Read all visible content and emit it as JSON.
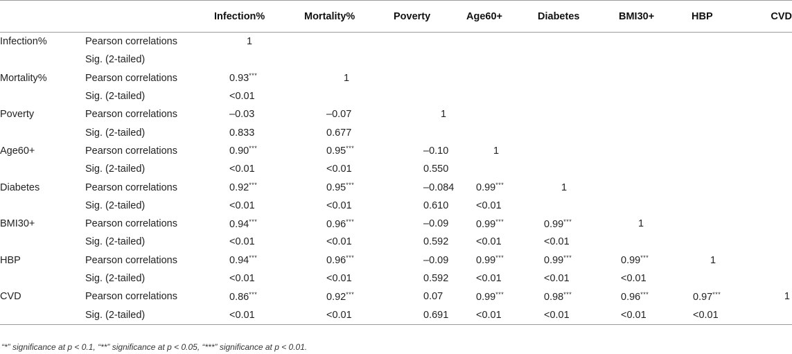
{
  "table": {
    "columns": [
      "",
      "",
      "Infection%",
      "Mortality%",
      "Poverty",
      "Age60+",
      "Diabetes",
      "BMI30+",
      "HBP",
      "CVD"
    ],
    "rows": [
      {
        "variable": "Infection%",
        "stat": "Pearson correlations",
        "cells": [
          {
            "v": "1",
            "s": ""
          },
          {
            "v": "",
            "s": ""
          },
          {
            "v": "",
            "s": ""
          },
          {
            "v": "",
            "s": ""
          },
          {
            "v": "",
            "s": ""
          },
          {
            "v": "",
            "s": ""
          },
          {
            "v": "",
            "s": ""
          },
          {
            "v": "",
            "s": ""
          }
        ]
      },
      {
        "variable": "",
        "stat": "Sig. (2-tailed)",
        "cells": [
          {
            "v": "",
            "s": ""
          },
          {
            "v": "",
            "s": ""
          },
          {
            "v": "",
            "s": ""
          },
          {
            "v": "",
            "s": ""
          },
          {
            "v": "",
            "s": ""
          },
          {
            "v": "",
            "s": ""
          },
          {
            "v": "",
            "s": ""
          },
          {
            "v": "",
            "s": ""
          }
        ]
      },
      {
        "variable": "Mortality%",
        "stat": "Pearson correlations",
        "cells": [
          {
            "v": "0.93",
            "s": "***"
          },
          {
            "v": "1",
            "s": ""
          },
          {
            "v": "",
            "s": ""
          },
          {
            "v": "",
            "s": ""
          },
          {
            "v": "",
            "s": ""
          },
          {
            "v": "",
            "s": ""
          },
          {
            "v": "",
            "s": ""
          },
          {
            "v": "",
            "s": ""
          }
        ]
      },
      {
        "variable": "",
        "stat": "Sig. (2-tailed)",
        "cells": [
          {
            "v": "<0.01",
            "s": ""
          },
          {
            "v": "",
            "s": ""
          },
          {
            "v": "",
            "s": ""
          },
          {
            "v": "",
            "s": ""
          },
          {
            "v": "",
            "s": ""
          },
          {
            "v": "",
            "s": ""
          },
          {
            "v": "",
            "s": ""
          },
          {
            "v": "",
            "s": ""
          }
        ]
      },
      {
        "variable": "Poverty",
        "stat": "Pearson correlations",
        "cells": [
          {
            "v": "–0.03",
            "s": ""
          },
          {
            "v": "–0.07",
            "s": ""
          },
          {
            "v": "1",
            "s": ""
          },
          {
            "v": "",
            "s": ""
          },
          {
            "v": "",
            "s": ""
          },
          {
            "v": "",
            "s": ""
          },
          {
            "v": "",
            "s": ""
          },
          {
            "v": "",
            "s": ""
          }
        ]
      },
      {
        "variable": "",
        "stat": "Sig. (2-tailed)",
        "cells": [
          {
            "v": "0.833",
            "s": ""
          },
          {
            "v": "0.677",
            "s": ""
          },
          {
            "v": "",
            "s": ""
          },
          {
            "v": "",
            "s": ""
          },
          {
            "v": "",
            "s": ""
          },
          {
            "v": "",
            "s": ""
          },
          {
            "v": "",
            "s": ""
          },
          {
            "v": "",
            "s": ""
          }
        ]
      },
      {
        "variable": "Age60+",
        "stat": "Pearson correlations",
        "cells": [
          {
            "v": "0.90",
            "s": "***"
          },
          {
            "v": "0.95",
            "s": "***"
          },
          {
            "v": "–0.10",
            "s": ""
          },
          {
            "v": "1",
            "s": ""
          },
          {
            "v": "",
            "s": ""
          },
          {
            "v": "",
            "s": ""
          },
          {
            "v": "",
            "s": ""
          },
          {
            "v": "",
            "s": ""
          }
        ]
      },
      {
        "variable": "",
        "stat": "Sig. (2-tailed)",
        "cells": [
          {
            "v": "<0.01",
            "s": ""
          },
          {
            "v": "<0.01",
            "s": ""
          },
          {
            "v": "0.550",
            "s": ""
          },
          {
            "v": "",
            "s": ""
          },
          {
            "v": "",
            "s": ""
          },
          {
            "v": "",
            "s": ""
          },
          {
            "v": "",
            "s": ""
          },
          {
            "v": "",
            "s": ""
          }
        ]
      },
      {
        "variable": "Diabetes",
        "stat": "Pearson correlations",
        "cells": [
          {
            "v": "0.92",
            "s": "***"
          },
          {
            "v": "0.95",
            "s": "***"
          },
          {
            "v": "–0.084",
            "s": ""
          },
          {
            "v": "0.99",
            "s": "***"
          },
          {
            "v": "1",
            "s": ""
          },
          {
            "v": "",
            "s": ""
          },
          {
            "v": "",
            "s": ""
          },
          {
            "v": "",
            "s": ""
          }
        ]
      },
      {
        "variable": "",
        "stat": "Sig. (2-tailed)",
        "cells": [
          {
            "v": "<0.01",
            "s": ""
          },
          {
            "v": "<0.01",
            "s": ""
          },
          {
            "v": "0.610",
            "s": ""
          },
          {
            "v": "<0.01",
            "s": ""
          },
          {
            "v": "",
            "s": ""
          },
          {
            "v": "",
            "s": ""
          },
          {
            "v": "",
            "s": ""
          },
          {
            "v": "",
            "s": ""
          }
        ]
      },
      {
        "variable": "BMI30+",
        "stat": "Pearson correlations",
        "cells": [
          {
            "v": "0.94",
            "s": "***"
          },
          {
            "v": "0.96",
            "s": "***"
          },
          {
            "v": "–0.09",
            "s": ""
          },
          {
            "v": "0.99",
            "s": "***"
          },
          {
            "v": "0.99",
            "s": "***"
          },
          {
            "v": "1",
            "s": ""
          },
          {
            "v": "",
            "s": ""
          },
          {
            "v": "",
            "s": ""
          }
        ]
      },
      {
        "variable": "",
        "stat": "Sig. (2-tailed)",
        "cells": [
          {
            "v": "<0.01",
            "s": ""
          },
          {
            "v": "<0.01",
            "s": ""
          },
          {
            "v": "0.592",
            "s": ""
          },
          {
            "v": "<0.01",
            "s": ""
          },
          {
            "v": "<0.01",
            "s": ""
          },
          {
            "v": "",
            "s": ""
          },
          {
            "v": "",
            "s": ""
          },
          {
            "v": "",
            "s": ""
          }
        ]
      },
      {
        "variable": "HBP",
        "stat": "Pearson correlations",
        "cells": [
          {
            "v": "0.94",
            "s": "***"
          },
          {
            "v": "0.96",
            "s": "***"
          },
          {
            "v": "–0.09",
            "s": ""
          },
          {
            "v": "0.99",
            "s": "***"
          },
          {
            "v": "0.99",
            "s": "***"
          },
          {
            "v": "0.99",
            "s": "***"
          },
          {
            "v": "1",
            "s": ""
          },
          {
            "v": "",
            "s": ""
          }
        ]
      },
      {
        "variable": "",
        "stat": "Sig. (2-tailed)",
        "cells": [
          {
            "v": "<0.01",
            "s": ""
          },
          {
            "v": "<0.01",
            "s": ""
          },
          {
            "v": "0.592",
            "s": ""
          },
          {
            "v": "<0.01",
            "s": ""
          },
          {
            "v": "<0.01",
            "s": ""
          },
          {
            "v": "<0.01",
            "s": ""
          },
          {
            "v": "",
            "s": ""
          },
          {
            "v": "",
            "s": ""
          }
        ]
      },
      {
        "variable": "CVD",
        "stat": "Pearson correlations",
        "cells": [
          {
            "v": "0.86",
            "s": "***"
          },
          {
            "v": "0.92",
            "s": "***"
          },
          {
            "v": "0.07",
            "s": ""
          },
          {
            "v": "0.99",
            "s": "***"
          },
          {
            "v": "0.98",
            "s": "***"
          },
          {
            "v": "0.96",
            "s": "***"
          },
          {
            "v": "0.97",
            "s": "***"
          },
          {
            "v": "1",
            "s": ""
          }
        ]
      },
      {
        "variable": "",
        "stat": "Sig. (2-tailed)",
        "cells": [
          {
            "v": "<0.01",
            "s": ""
          },
          {
            "v": "<0.01",
            "s": ""
          },
          {
            "v": "0.691",
            "s": ""
          },
          {
            "v": "<0.01",
            "s": ""
          },
          {
            "v": "<0.01",
            "s": ""
          },
          {
            "v": "<0.01",
            "s": ""
          },
          {
            "v": "<0.01",
            "s": ""
          },
          {
            "v": "",
            "s": ""
          }
        ]
      }
    ]
  },
  "footnote": "“*” significance at p < 0.1, “**” significance at p < 0.05, “***” significance at p < 0.01."
}
